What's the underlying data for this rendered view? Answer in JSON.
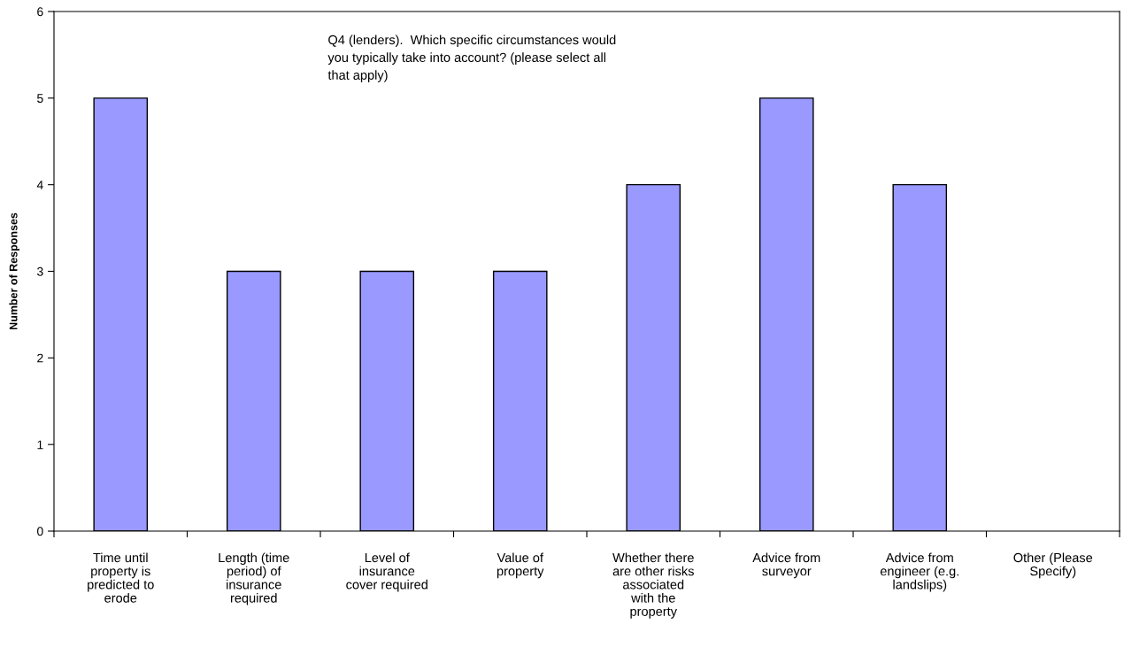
{
  "chart_data": {
    "type": "bar",
    "title": "Q4 (lenders).  Which specific circumstances would\nyou typically take into account? (please select all\nthat apply)",
    "ylabel": "Number of Responses",
    "categories": [
      "Time until\nproperty is\npredicted to\nerode",
      "Length (time\nperiod) of\ninsurance\nrequired",
      "Level of\ninsurance\ncover required",
      "Value of\nproperty",
      "Whether there\nare other risks\nassociated\nwith the\nproperty",
      "Advice from\nsurveyor",
      "Advice from\nengineer (e.g.\nlandslips)",
      "Other (Please\nSpecify)"
    ],
    "values": [
      5,
      3,
      3,
      3,
      4,
      5,
      4,
      0
    ],
    "color": "#9999ff",
    "ylim": [
      0,
      6
    ],
    "yticks": [
      0,
      1,
      2,
      3,
      4,
      5,
      6
    ],
    "grid": false,
    "legend": false
  }
}
